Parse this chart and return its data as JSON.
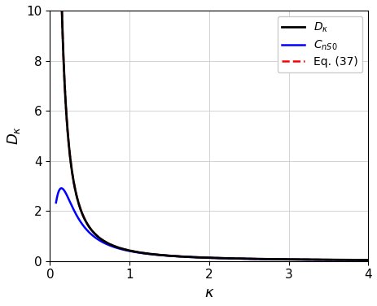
{
  "xlim": [
    0,
    4
  ],
  "ylim": [
    0,
    10
  ],
  "xlabel": "$\\kappa$",
  "ylabel": "$D_{\\kappa}$",
  "xticks": [
    0,
    1,
    2,
    3,
    4
  ],
  "yticks": [
    0,
    2,
    4,
    6,
    8,
    10
  ],
  "grid": true,
  "kappa_start": 0.075,
  "kappa_end": 4.0,
  "n_points": 3000,
  "A": 0.418,
  "kappa_0": 0.184,
  "legend_D": "$D_{\\kappa}$",
  "legend_C": "$C_{nS0}$",
  "legend_Eq": "Eq. (37)",
  "color_D": "#000000",
  "color_C": "#0000ff",
  "color_Eq": "#ff0000",
  "lw_D": 2.0,
  "lw_C": 1.8,
  "lw_Eq": 1.8,
  "background_color": "#ffffff"
}
